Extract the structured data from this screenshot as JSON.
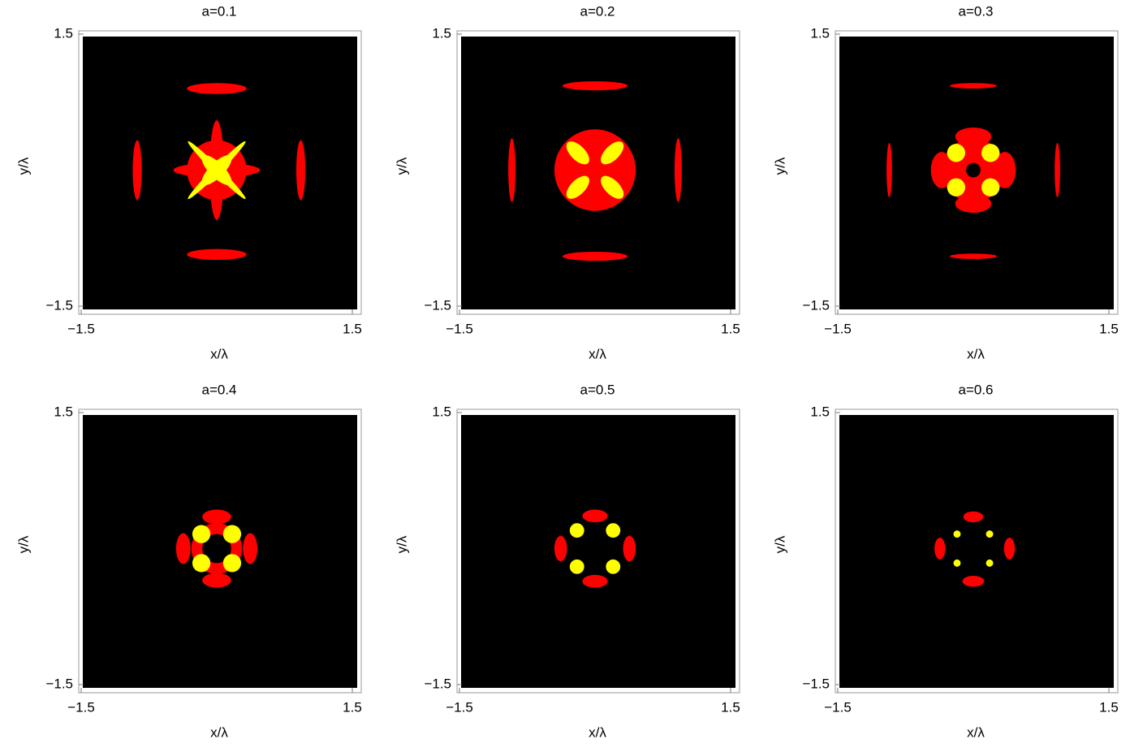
{
  "chart_data": [
    {
      "type": "region",
      "title": "a=0.1",
      "xlabel": "x/λ",
      "ylabel": "y/λ",
      "background": "#000000",
      "xlim": [
        -1.5,
        1.5
      ],
      "ylim": [
        -1.5,
        1.5
      ],
      "xticks": [
        {
          "value": -1.5,
          "label": "−1.5"
        },
        1.5
      ],
      "yticks": [
        {
          "value": -1.5,
          "label": "−1.5"
        },
        1.5
      ],
      "regions": [
        {
          "color": "#ff0000",
          "cx": 0,
          "cy": 0.9,
          "rx": 0.33,
          "ry": 0.06
        },
        {
          "color": "#ff0000",
          "cx": 0,
          "cy": -0.93,
          "rx": 0.33,
          "ry": 0.06
        },
        {
          "color": "#ff0000",
          "cx": -0.88,
          "cy": 0,
          "rx": 0.05,
          "ry": 0.33
        },
        {
          "color": "#ff0000",
          "cx": 0.93,
          "cy": 0,
          "rx": 0.05,
          "ry": 0.33
        },
        {
          "color": "#ff0000",
          "cx": 0,
          "cy": 0,
          "rx": 0.48,
          "ry": 0.08
        },
        {
          "color": "#ff0000",
          "cx": 0,
          "cy": 0,
          "rx": 0.08,
          "ry": 0.55
        },
        {
          "color": "#ff0000",
          "cx": 0,
          "cy": 0,
          "rx": 0.33,
          "ry": 0.33
        },
        {
          "color": "#ffff00",
          "cx": 0,
          "cy": 0,
          "rx": 0.45,
          "ry": 0.04,
          "angle": 45
        },
        {
          "color": "#ffff00",
          "cx": 0,
          "cy": 0,
          "rx": 0.45,
          "ry": 0.04,
          "angle": -45
        },
        {
          "color": "#ffff00",
          "cx": 0,
          "cy": 0,
          "rx": 0.22,
          "ry": 0.08,
          "angle": 45
        },
        {
          "color": "#ffff00",
          "cx": 0,
          "cy": 0,
          "rx": 0.22,
          "ry": 0.08,
          "angle": -45
        }
      ]
    },
    {
      "type": "region",
      "title": "a=0.2",
      "xlabel": "x/λ",
      "ylabel": "y/λ",
      "background": "#000000",
      "xlim": [
        -1.5,
        1.5
      ],
      "ylim": [
        -1.5,
        1.5
      ],
      "xticks": [
        {
          "value": -1.5,
          "label": "−1.5"
        },
        1.5
      ],
      "yticks": [
        {
          "value": -1.5,
          "label": "−1.5"
        },
        1.5
      ],
      "regions": [
        {
          "color": "#ff0000",
          "cx": 0,
          "cy": 0.93,
          "rx": 0.36,
          "ry": 0.05
        },
        {
          "color": "#ff0000",
          "cx": 0,
          "cy": -0.95,
          "rx": 0.36,
          "ry": 0.05
        },
        {
          "color": "#ff0000",
          "cx": -0.92,
          "cy": 0,
          "rx": 0.04,
          "ry": 0.35
        },
        {
          "color": "#ff0000",
          "cx": 0.92,
          "cy": 0,
          "rx": 0.04,
          "ry": 0.35
        },
        {
          "color": "#ff0000",
          "cx": 0,
          "cy": 0,
          "rx": 0.45,
          "ry": 0.45
        },
        {
          "color": "#ffff00",
          "cx": 0.19,
          "cy": 0.19,
          "rx": 0.16,
          "ry": 0.08,
          "angle": 45
        },
        {
          "color": "#ffff00",
          "cx": -0.19,
          "cy": -0.19,
          "rx": 0.16,
          "ry": 0.08,
          "angle": 45
        },
        {
          "color": "#ffff00",
          "cx": -0.19,
          "cy": 0.19,
          "rx": 0.16,
          "ry": 0.08,
          "angle": -45
        },
        {
          "color": "#ffff00",
          "cx": 0.19,
          "cy": -0.19,
          "rx": 0.16,
          "ry": 0.08,
          "angle": -45
        }
      ]
    },
    {
      "type": "region",
      "title": "a=0.3",
      "xlabel": "x/λ",
      "ylabel": "y/λ",
      "background": "#000000",
      "xlim": [
        -1.5,
        1.5
      ],
      "ylim": [
        -1.5,
        1.5
      ],
      "xticks": [
        {
          "value": -1.5,
          "label": "−1.5"
        },
        1.5
      ],
      "yticks": [
        {
          "value": -1.5,
          "label": "−1.5"
        },
        1.5
      ],
      "regions": [
        {
          "color": "#ff0000",
          "cx": 0,
          "cy": 0.93,
          "rx": 0.26,
          "ry": 0.03
        },
        {
          "color": "#ff0000",
          "cx": 0,
          "cy": -0.95,
          "rx": 0.26,
          "ry": 0.03
        },
        {
          "color": "#ff0000",
          "cx": -0.93,
          "cy": 0,
          "rx": 0.03,
          "ry": 0.3
        },
        {
          "color": "#ff0000",
          "cx": 0.93,
          "cy": 0,
          "rx": 0.03,
          "ry": 0.3
        },
        {
          "color": "#ff0000",
          "cx": 0,
          "cy": 0,
          "rx": 0.35,
          "ry": 0.35
        },
        {
          "color": "#ff0000",
          "cx": -0.35,
          "cy": 0,
          "rx": 0.12,
          "ry": 0.2
        },
        {
          "color": "#ff0000",
          "cx": 0.35,
          "cy": 0,
          "rx": 0.12,
          "ry": 0.2
        },
        {
          "color": "#ff0000",
          "cx": 0,
          "cy": 0.37,
          "rx": 0.2,
          "ry": 0.1
        },
        {
          "color": "#ff0000",
          "cx": 0,
          "cy": -0.37,
          "rx": 0.2,
          "ry": 0.1
        },
        {
          "color": "#ffff00",
          "cx": 0.19,
          "cy": 0.19,
          "rx": 0.1,
          "ry": 0.1
        },
        {
          "color": "#ffff00",
          "cx": -0.19,
          "cy": 0.19,
          "rx": 0.1,
          "ry": 0.1
        },
        {
          "color": "#ffff00",
          "cx": 0.19,
          "cy": -0.19,
          "rx": 0.1,
          "ry": 0.1
        },
        {
          "color": "#ffff00",
          "cx": -0.19,
          "cy": -0.19,
          "rx": 0.1,
          "ry": 0.1
        },
        {
          "color": "#000000",
          "cx": 0,
          "cy": 0,
          "rx": 0.08,
          "ry": 0.08
        }
      ]
    },
    {
      "type": "region",
      "title": "a=0.4",
      "xlabel": "x/λ",
      "ylabel": "y/λ",
      "background": "#000000",
      "xlim": [
        -1.5,
        1.5
      ],
      "ylim": [
        -1.5,
        1.5
      ],
      "xticks": [
        {
          "value": -1.5,
          "label": "−1.5"
        },
        1.5
      ],
      "yticks": [
        {
          "value": -1.5,
          "label": "−1.5"
        },
        1.5
      ],
      "regions": [
        {
          "color": "#ff0000",
          "cx": 0,
          "cy": 0,
          "rx": 0.28,
          "ry": 0.28
        },
        {
          "color": "#ff0000",
          "cx": 0,
          "cy": 0.35,
          "rx": 0.16,
          "ry": 0.08
        },
        {
          "color": "#ff0000",
          "cx": 0,
          "cy": -0.35,
          "rx": 0.16,
          "ry": 0.08
        },
        {
          "color": "#ff0000",
          "cx": -0.37,
          "cy": 0,
          "rx": 0.08,
          "ry": 0.17
        },
        {
          "color": "#ff0000",
          "cx": 0.37,
          "cy": 0,
          "rx": 0.08,
          "ry": 0.17
        },
        {
          "color": "#000000",
          "cx": 0,
          "cy": 0,
          "rx": 0.16,
          "ry": 0.16
        },
        {
          "color": "#ffff00",
          "cx": 0.17,
          "cy": 0.16,
          "rx": 0.1,
          "ry": 0.1
        },
        {
          "color": "#ffff00",
          "cx": -0.17,
          "cy": 0.16,
          "rx": 0.1,
          "ry": 0.1
        },
        {
          "color": "#ffff00",
          "cx": 0.17,
          "cy": -0.16,
          "rx": 0.1,
          "ry": 0.1
        },
        {
          "color": "#ffff00",
          "cx": -0.17,
          "cy": -0.16,
          "rx": 0.1,
          "ry": 0.1
        }
      ]
    },
    {
      "type": "region",
      "title": "a=0.5",
      "xlabel": "x/λ",
      "ylabel": "y/λ",
      "background": "#000000",
      "xlim": [
        -1.5,
        1.5
      ],
      "ylim": [
        -1.5,
        1.5
      ],
      "xticks": [
        {
          "value": -1.5,
          "label": "−1.5"
        },
        1.5
      ],
      "yticks": [
        {
          "value": -1.5,
          "label": "−1.5"
        },
        1.5
      ],
      "regions": [
        {
          "color": "#ff0000",
          "cx": 0,
          "cy": 0.36,
          "rx": 0.14,
          "ry": 0.07
        },
        {
          "color": "#ff0000",
          "cx": 0,
          "cy": -0.36,
          "rx": 0.14,
          "ry": 0.07
        },
        {
          "color": "#ff0000",
          "cx": -0.38,
          "cy": 0,
          "rx": 0.07,
          "ry": 0.14
        },
        {
          "color": "#ff0000",
          "cx": 0.38,
          "cy": 0,
          "rx": 0.07,
          "ry": 0.14
        },
        {
          "color": "#ffff00",
          "cx": 0.2,
          "cy": 0.2,
          "rx": 0.08,
          "ry": 0.08
        },
        {
          "color": "#ffff00",
          "cx": -0.2,
          "cy": 0.2,
          "rx": 0.08,
          "ry": 0.08
        },
        {
          "color": "#ffff00",
          "cx": 0.2,
          "cy": -0.2,
          "rx": 0.08,
          "ry": 0.08
        },
        {
          "color": "#ffff00",
          "cx": -0.2,
          "cy": -0.2,
          "rx": 0.08,
          "ry": 0.08
        }
      ]
    },
    {
      "type": "region",
      "title": "a=0.6",
      "xlabel": "x/λ",
      "ylabel": "y/λ",
      "background": "#000000",
      "xlim": [
        -1.5,
        1.5
      ],
      "ylim": [
        -1.5,
        1.5
      ],
      "xticks": [
        {
          "value": -1.5,
          "label": "−1.5"
        },
        1.5
      ],
      "yticks": [
        {
          "value": -1.5,
          "label": "−1.5"
        },
        1.5
      ],
      "regions": [
        {
          "color": "#ff0000",
          "cx": 0,
          "cy": 0.35,
          "rx": 0.11,
          "ry": 0.06
        },
        {
          "color": "#ff0000",
          "cx": 0,
          "cy": -0.36,
          "rx": 0.12,
          "ry": 0.06
        },
        {
          "color": "#ff0000",
          "cx": -0.37,
          "cy": 0,
          "rx": 0.06,
          "ry": 0.12
        },
        {
          "color": "#ff0000",
          "cx": 0.4,
          "cy": 0,
          "rx": 0.06,
          "ry": 0.12
        },
        {
          "color": "#ffff00",
          "cx": 0.18,
          "cy": 0.16,
          "rx": 0.04,
          "ry": 0.04
        },
        {
          "color": "#ffff00",
          "cx": -0.18,
          "cy": 0.16,
          "rx": 0.04,
          "ry": 0.04
        },
        {
          "color": "#ffff00",
          "cx": 0.18,
          "cy": -0.16,
          "rx": 0.04,
          "ry": 0.04
        },
        {
          "color": "#ffff00",
          "cx": -0.18,
          "cy": -0.16,
          "rx": 0.04,
          "ry": 0.04
        }
      ]
    }
  ]
}
